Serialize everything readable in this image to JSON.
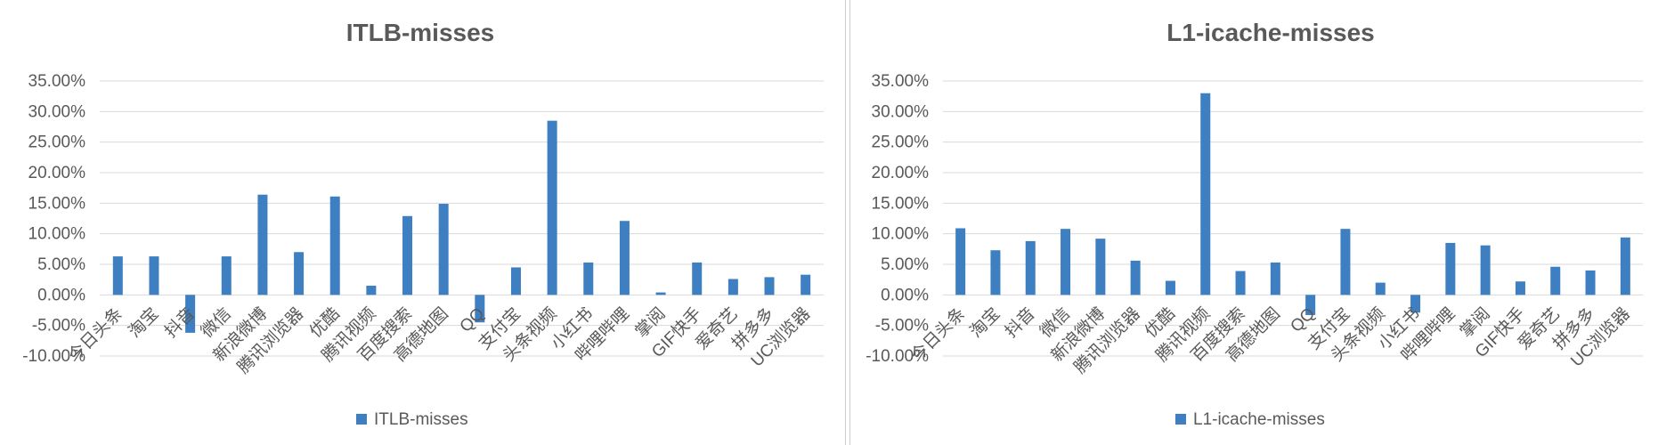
{
  "chart_data": [
    {
      "type": "bar",
      "title": "ITLB-misses",
      "categories": [
        "今日头条",
        "淘宝",
        "抖音",
        "微信",
        "新浪微博",
        "腾讯浏览器",
        "优酷",
        "腾讯视频",
        "百度搜索",
        "高德地图",
        "QQ",
        "支付宝",
        "头条视频",
        "小红书",
        "哔哩哔哩",
        "掌阅",
        "GIF快手",
        "爱奇艺",
        "拼多多",
        "UC浏览器"
      ],
      "series": [
        {
          "name": "ITLB-misses",
          "values": [
            6.3,
            6.3,
            -6.2,
            6.3,
            16.4,
            7.0,
            16.1,
            1.5,
            12.9,
            14.9,
            -4.5,
            4.5,
            28.5,
            5.3,
            12.1,
            0.4,
            5.3,
            2.6,
            2.9,
            3.3
          ]
        }
      ],
      "ylim": [
        -10,
        35
      ],
      "yticks": [
        "35.00%",
        "30.00%",
        "25.00%",
        "20.00%",
        "15.00%",
        "10.00%",
        "5.00%",
        "0.00%",
        "-5.00%",
        "-10.00%"
      ],
      "color": "#3d7fc1",
      "grid": true,
      "legend_position": "bottom"
    },
    {
      "type": "bar",
      "title": "L1-icache-misses",
      "categories": [
        "今日头条",
        "淘宝",
        "抖音",
        "微信",
        "新浪微博",
        "腾讯浏览器",
        "优酷",
        "腾讯视频",
        "百度搜索",
        "高德地图",
        "QQ",
        "支付宝",
        "头条视频",
        "小红书",
        "哔哩哔哩",
        "掌阅",
        "GIF快手",
        "爱奇艺",
        "拼多多",
        "UC浏览器"
      ],
      "series": [
        {
          "name": "L1-icache-misses",
          "values": [
            10.9,
            7.3,
            8.8,
            10.8,
            9.2,
            5.6,
            2.3,
            33.0,
            3.9,
            5.3,
            -3.3,
            10.8,
            2.0,
            -2.9,
            8.5,
            8.1,
            2.2,
            4.6,
            4.0,
            9.4
          ]
        }
      ],
      "ylim": [
        -10,
        35
      ],
      "yticks": [
        "35.00%",
        "30.00%",
        "25.00%",
        "20.00%",
        "15.00%",
        "10.00%",
        "5.00%",
        "0.00%",
        "-5.00%",
        "-10.00%"
      ],
      "color": "#3d7fc1",
      "grid": true,
      "legend_position": "bottom"
    }
  ]
}
